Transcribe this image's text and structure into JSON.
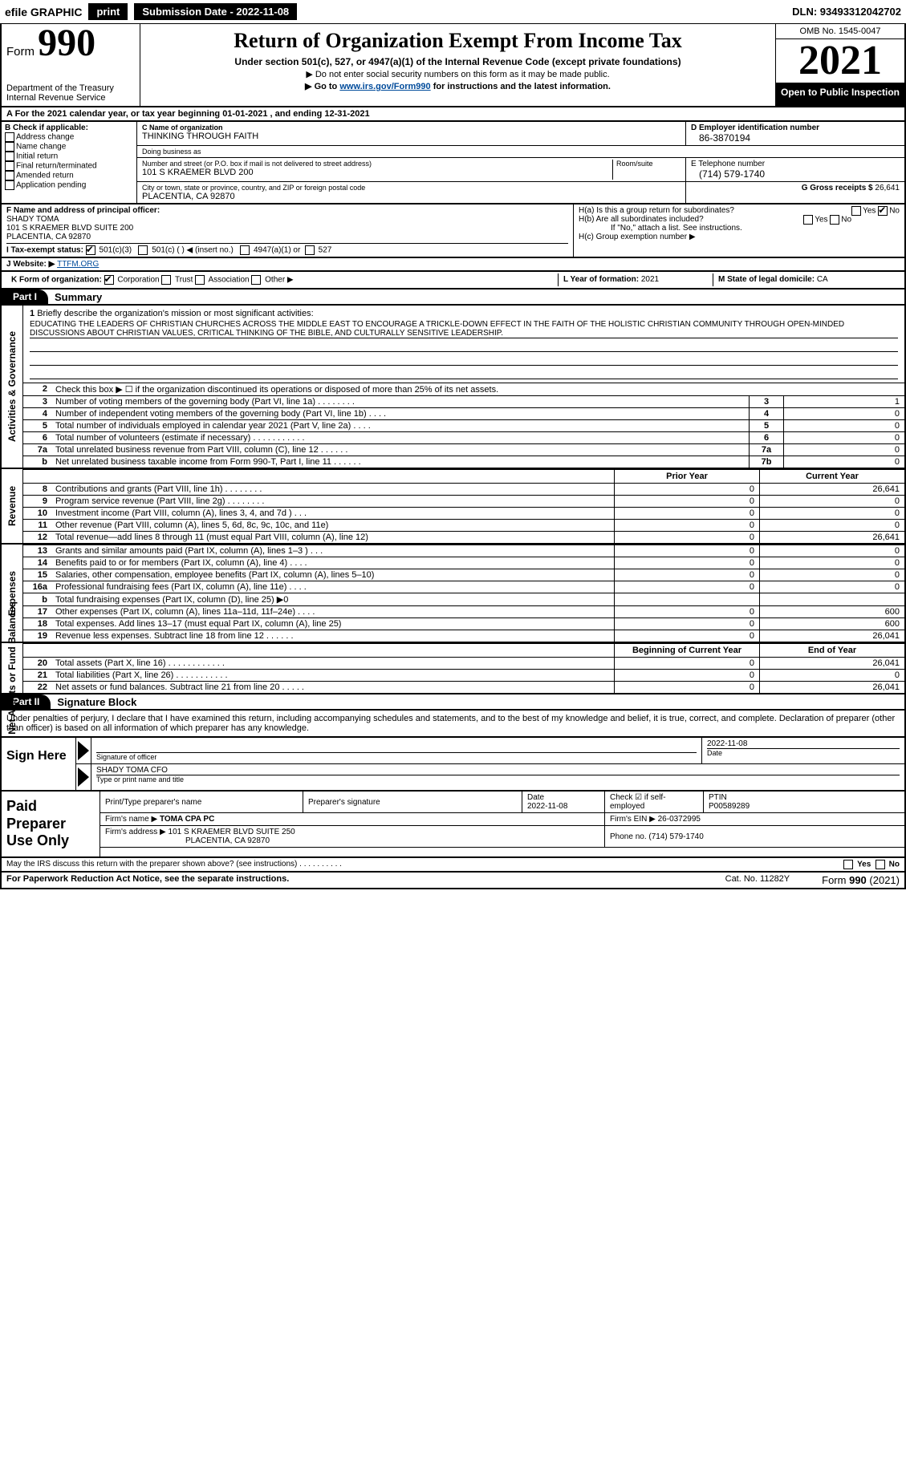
{
  "topbar": {
    "efile": "efile GRAPHIC",
    "print": "print",
    "submission": "Submission Date - 2022-11-08",
    "dln": "DLN: 93493312042702"
  },
  "header": {
    "form_label": "Form",
    "form_number": "990",
    "dept": "Department of the Treasury",
    "irs": "Internal Revenue Service",
    "title": "Return of Organization Exempt From Income Tax",
    "sub": "Under section 501(c), 527, or 4947(a)(1) of the Internal Revenue Code (except private foundations)",
    "line2": "▶ Do not enter social security numbers on this form as it may be made public.",
    "line3_pre": "▶ Go to ",
    "line3_link": "www.irs.gov/Form990",
    "line3_post": " for instructions and the latest information.",
    "omb": "OMB No. 1545-0047",
    "year": "2021",
    "open": "Open to Public Inspection"
  },
  "rowA": "A For the 2021 calendar year, or tax year beginning 01-01-2021    , and ending 12-31-2021",
  "colB": {
    "label": "B Check if applicable:",
    "items": [
      "Address change",
      "Name change",
      "Initial return",
      "Final return/terminated",
      "Amended return",
      "Application pending"
    ]
  },
  "c": {
    "name_lbl": "C Name of organization",
    "name": "THINKING THROUGH FAITH",
    "dba_lbl": "Doing business as",
    "dba": "",
    "addr_lbl": "Number and street (or P.O. box if mail is not delivered to street address)",
    "room_lbl": "Room/suite",
    "addr": "101 S KRAEMER BLVD 200",
    "city_lbl": "City or town, state or province, country, and ZIP or foreign postal code",
    "city": "PLACENTIA, CA  92870"
  },
  "d": {
    "lbl": "D Employer identification number",
    "val": "86-3870194"
  },
  "e": {
    "lbl": "E Telephone number",
    "val": "(714) 579-1740"
  },
  "g": {
    "lbl": "G Gross receipts $",
    "val": "26,641"
  },
  "f": {
    "lbl": "F Name and address of principal officer:",
    "name": "SHADY TOMA",
    "addr1": "101 S KRAEMER BLVD SUITE 200",
    "addr2": "PLACENTIA, CA  92870"
  },
  "h": {
    "a": "H(a)  Is this a group return for subordinates?",
    "b": "H(b)  Are all subordinates included?",
    "b2": "If \"No,\" attach a list. See instructions.",
    "c": "H(c)  Group exemption number ▶",
    "yes": "Yes",
    "no": "No"
  },
  "i": {
    "lbl": "I   Tax-exempt status:",
    "o501c3": "501(c)(3)",
    "o501c": "501(c) (   ) ◀ (insert no.)",
    "o4947": "4947(a)(1) or",
    "o527": "527"
  },
  "j": {
    "lbl": "J   Website: ▶",
    "val": "TTFM.ORG"
  },
  "k": {
    "lbl": "K Form of organization:",
    "corp": "Corporation",
    "trust": "Trust",
    "assoc": "Association",
    "other": "Other ▶"
  },
  "l": {
    "year_lbl": "L Year of formation:",
    "year": "2021",
    "state_lbl": "M State of legal domicile:",
    "state": "CA"
  },
  "part1": {
    "tab": "Part I",
    "title": "Summary",
    "side1": "Activities & Governance",
    "side2": "Revenue",
    "side3": "Expenses",
    "side4": "Net Assets or Fund Balances",
    "q1": "Briefly describe the organization's mission or most significant activities:",
    "mission": "EDUCATING THE LEADERS OF CHRISTIAN CHURCHES ACROSS THE MIDDLE EAST TO ENCOURAGE A TRICKLE-DOWN EFFECT IN THE FAITH OF THE HOLISTIC CHRISTIAN COMMUNITY THROUGH OPEN-MINDED DISCUSSIONS ABOUT CHRISTIAN VALUES, CRITICAL THINKING OF THE BIBLE, AND CULTURALLY SENSITIVE LEADERSHIP.",
    "q2": "Check this box ▶ ☐  if the organization discontinued its operations or disposed of more than 25% of its net assets.",
    "rows_gov": [
      {
        "n": "3",
        "t": "Number of voting members of the governing body (Part VI, line 1a)   .    .    .    .    .    .    .    .",
        "box": "3",
        "v": "1"
      },
      {
        "n": "4",
        "t": "Number of independent voting members of the governing body (Part VI, line 1b)   .    .    .    .",
        "box": "4",
        "v": "0"
      },
      {
        "n": "5",
        "t": "Total number of individuals employed in calendar year 2021 (Part V, line 2a)   .    .    .    .",
        "box": "5",
        "v": "0"
      },
      {
        "n": "6",
        "t": "Total number of volunteers (estimate if necessary)   .    .    .    .    .    .    .    .    .    .    .",
        "box": "6",
        "v": "0"
      },
      {
        "n": "7a",
        "t": "Total unrelated business revenue from Part VIII, column (C), line 12   .    .    .    .    .    .",
        "box": "7a",
        "v": "0"
      },
      {
        "n": "b",
        "t": "Net unrelated business taxable income from Form 990-T, Part I, line 11   .    .    .    .    .    .",
        "box": "7b",
        "v": "0"
      }
    ],
    "prior_hdr": "Prior Year",
    "curr_hdr": "Current Year",
    "rows_rev": [
      {
        "n": "8",
        "t": "Contributions and grants (Part VIII, line 1h)   .    .    .    .    .    .    .    .",
        "p": "0",
        "c": "26,641"
      },
      {
        "n": "9",
        "t": "Program service revenue (Part VIII, line 2g)   .    .    .    .    .    .    .    .",
        "p": "0",
        "c": "0"
      },
      {
        "n": "10",
        "t": "Investment income (Part VIII, column (A), lines 3, 4, and 7d )   .    .    .",
        "p": "0",
        "c": "0"
      },
      {
        "n": "11",
        "t": "Other revenue (Part VIII, column (A), lines 5, 6d, 8c, 9c, 10c, and 11e)",
        "p": "0",
        "c": "0"
      },
      {
        "n": "12",
        "t": "Total revenue—add lines 8 through 11 (must equal Part VIII, column (A), line 12)",
        "p": "0",
        "c": "26,641"
      }
    ],
    "rows_exp": [
      {
        "n": "13",
        "t": "Grants and similar amounts paid (Part IX, column (A), lines 1–3 )   .    .    .",
        "p": "0",
        "c": "0"
      },
      {
        "n": "14",
        "t": "Benefits paid to or for members (Part IX, column (A), line 4)   .    .    .    .",
        "p": "0",
        "c": "0"
      },
      {
        "n": "15",
        "t": "Salaries, other compensation, employee benefits (Part IX, column (A), lines 5–10)",
        "p": "0",
        "c": "0"
      },
      {
        "n": "16a",
        "t": "Professional fundraising fees (Part IX, column (A), line 11e)   .    .    .    .",
        "p": "0",
        "c": "0"
      },
      {
        "n": "b",
        "t": "Total fundraising expenses (Part IX, column (D), line 25) ▶0",
        "p": "",
        "c": "",
        "shade": true
      },
      {
        "n": "17",
        "t": "Other expenses (Part IX, column (A), lines 11a–11d, 11f–24e)   .    .    .    .",
        "p": "0",
        "c": "600"
      },
      {
        "n": "18",
        "t": "Total expenses. Add lines 13–17 (must equal Part IX, column (A), line 25)",
        "p": "0",
        "c": "600"
      },
      {
        "n": "19",
        "t": "Revenue less expenses. Subtract line 18 from line 12   .    .    .    .    .    .",
        "p": "0",
        "c": "26,041"
      }
    ],
    "beg_hdr": "Beginning of Current Year",
    "end_hdr": "End of Year",
    "rows_net": [
      {
        "n": "20",
        "t": "Total assets (Part X, line 16)   .    .    .    .    .    .    .    .    .    .    .    .",
        "p": "0",
        "c": "26,041"
      },
      {
        "n": "21",
        "t": "Total liabilities (Part X, line 26)   .    .    .    .    .    .    .    .    .    .    .",
        "p": "0",
        "c": "0"
      },
      {
        "n": "22",
        "t": "Net assets or fund balances. Subtract line 21 from line 20   .    .    .    .    .",
        "p": "0",
        "c": "26,041"
      }
    ]
  },
  "part2": {
    "tab": "Part II",
    "title": "Signature Block",
    "intro": "Under penalties of perjury, I declare that I have examined this return, including accompanying schedules and statements, and to the best of my knowledge and belief, it is true, correct, and complete. Declaration of preparer (other than officer) is based on all information of which preparer has any knowledge."
  },
  "sign": {
    "left": "Sign Here",
    "sig_lbl": "Signature of officer",
    "date": "2022-11-08",
    "date_lbl": "Date",
    "name": "SHADY TOMA CFO",
    "name_lbl": "Type or print name and title"
  },
  "prep": {
    "left": "Paid Preparer Use Only",
    "h1": "Print/Type preparer's name",
    "h2": "Preparer's signature",
    "h3": "Date",
    "h3v": "2022-11-08",
    "h4": "Check ☑ if self-employed",
    "h5": "PTIN",
    "h5v": "P00589289",
    "firm_lbl": "Firm's name    ▶",
    "firm": "TOMA CPA PC",
    "ein_lbl": "Firm's EIN ▶",
    "ein": "26-0372995",
    "addr_lbl": "Firm's address ▶",
    "addr1": "101 S KRAEMER BLVD SUITE 250",
    "addr2": "PLACENTIA, CA  92870",
    "phone_lbl": "Phone no.",
    "phone": "(714) 579-1740"
  },
  "may": {
    "q": "May the IRS discuss this return with the preparer shown above? (see instructions)   .    .    .    .    .    .    .    .    .    .",
    "yes": "Yes",
    "no": "No"
  },
  "footer": {
    "left": "For Paperwork Reduction Act Notice, see the separate instructions.",
    "mid": "Cat. No. 11282Y",
    "right_pre": "Form ",
    "right_b": "990",
    "right_post": " (2021)"
  }
}
